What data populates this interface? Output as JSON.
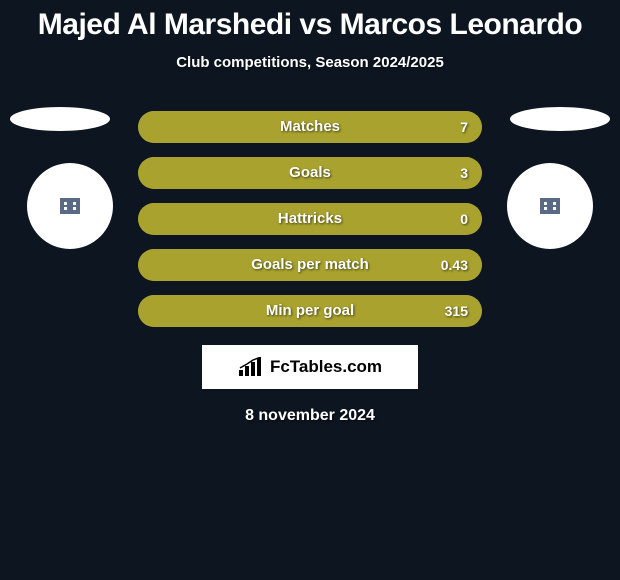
{
  "title": {
    "player1": "Majed Al Marshedi",
    "vs": "vs",
    "player2": "Marcos Leonardo"
  },
  "subtitle": "Club competitions, Season 2024/2025",
  "colors": {
    "bar_primary": "#a9a22f",
    "bar_secondary": "#8f8a2c",
    "background": "#0d1520"
  },
  "stats": [
    {
      "label": "Matches",
      "value": "7",
      "right_pct": 100,
      "right_color": "#a9a22f"
    },
    {
      "label": "Goals",
      "value": "3",
      "right_pct": 100,
      "right_color": "#a9a22f"
    },
    {
      "label": "Hattricks",
      "value": "0",
      "right_pct": 100,
      "right_color": "#a9a22f"
    },
    {
      "label": "Goals per match",
      "value": "0.43",
      "right_pct": 100,
      "right_color": "#a9a22f"
    },
    {
      "label": "Min per goal",
      "value": "315",
      "right_pct": 100,
      "right_color": "#a9a22f"
    }
  ],
  "logo_text": "FcTables.com",
  "date": "8 november 2024"
}
